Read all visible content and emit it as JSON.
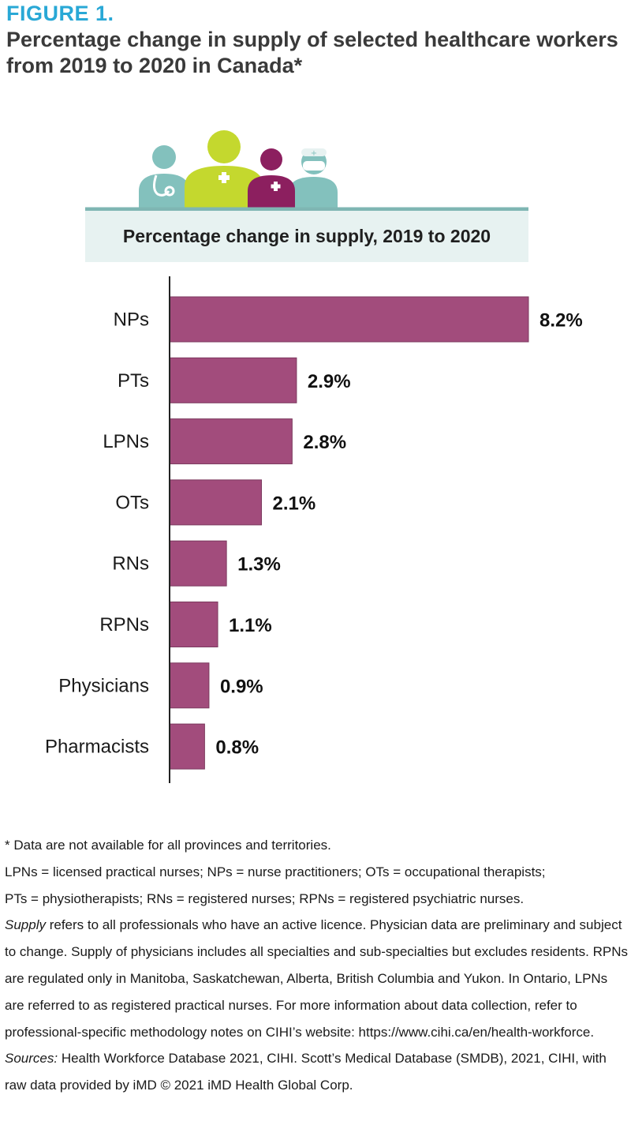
{
  "figure": {
    "label": "FIGURE 1.",
    "title": "Percentage change in supply of selected healthcare workers from 2019 to 2020 in Canada*"
  },
  "colors": {
    "bar": "#a24c7c",
    "bar_border": "#7c3a5f",
    "accent_blue": "#29a8d6",
    "figure_teal": "#83c1bd",
    "figure_lime": "#c4d82e",
    "figure_plum": "#8c1f5f"
  },
  "chart_data": {
    "type": "bar",
    "orientation": "horizontal",
    "title": "Percentage change in supply, 2019 to 2020",
    "categories": [
      "NPs",
      "PTs",
      "LPNs",
      "OTs",
      "RNs",
      "RPNs",
      "Physicians",
      "Pharmacists"
    ],
    "values": [
      8.2,
      2.9,
      2.8,
      2.1,
      1.3,
      1.1,
      0.9,
      0.8
    ],
    "value_labels": [
      "8.2%",
      "2.9%",
      "2.8%",
      "2.1%",
      "1.3%",
      "1.1%",
      "0.9%",
      "0.8%"
    ],
    "xlim": [
      0,
      8.2
    ],
    "grid": false
  },
  "notes": {
    "asterisk": "* Data are not available for all provinces and territories.",
    "abbrev_1": "LPNs = licensed practical nurses; NPs = nurse practitioners; OTs = occupational therapists;",
    "abbrev_2": "PTs = physiotherapists; RNs = registered nurses; RPNs = registered psychiatric nurses.",
    "supply_term": "Supply",
    "supply_text": " refers to all professionals who have an active licence.  Physician data are preliminary and subject to change. Supply of physicians includes all specialties and sub-specialties but excludes residents. RPNs are regulated only in Manitoba, Saskatchewan, Alberta, British Columbia and Yukon. In Ontario, LPNs are referred to as registered practical nurses. For more information about data collection, refer to professional-specific methodology notes on CIHI’s website: https://www.cihi.ca/en/health-workforce.",
    "sources_label": "Sources:",
    "sources_text": " Health Workforce Database 2021, CIHI. Scott’s Medical Database (SMDB), 2021, CIHI, with raw data provided by iMD © 2021 iMD Health Global Corp."
  }
}
